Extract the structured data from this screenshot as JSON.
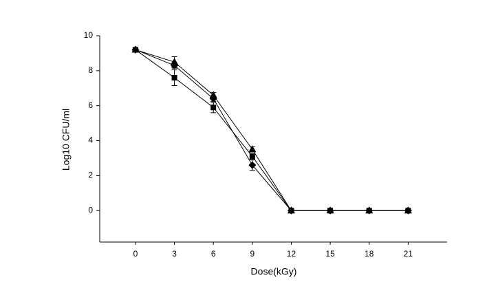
{
  "chart_data": {
    "type": "line",
    "x_label": "Dose(kGy)",
    "y_label": "Log10 CFU/ml",
    "x": [
      0,
      3,
      6,
      9,
      12,
      15,
      18,
      21
    ],
    "series": [
      {
        "color": "#000000",
        "marker": "square",
        "values": [
          9.2,
          7.6,
          5.9,
          3.1,
          0,
          0,
          0,
          0
        ],
        "errors": [
          0.1,
          0.45,
          0.3,
          0.15,
          0,
          0,
          0,
          0
        ]
      },
      {
        "color": "#000000",
        "marker": "diamond",
        "values": [
          9.2,
          8.3,
          6.4,
          2.6,
          0,
          0,
          0,
          0
        ],
        "errors": [
          0.1,
          0.15,
          0.15,
          0.3,
          0,
          0,
          0,
          0
        ]
      },
      {
        "color": "#000000",
        "marker": "triangle",
        "values": [
          9.2,
          8.5,
          6.6,
          3.5,
          0,
          0,
          0,
          0
        ],
        "errors": [
          0.1,
          0.3,
          0.15,
          0.15,
          0,
          0,
          0,
          0
        ]
      }
    ],
    "xlim": [
      -2.75,
      24
    ],
    "xticks": [
      0,
      3,
      6,
      9,
      12,
      15,
      18,
      21
    ],
    "ylim": [
      -1.8,
      10
    ],
    "yticks": [
      0,
      2,
      4,
      6,
      8,
      10
    ],
    "grid": false
  }
}
